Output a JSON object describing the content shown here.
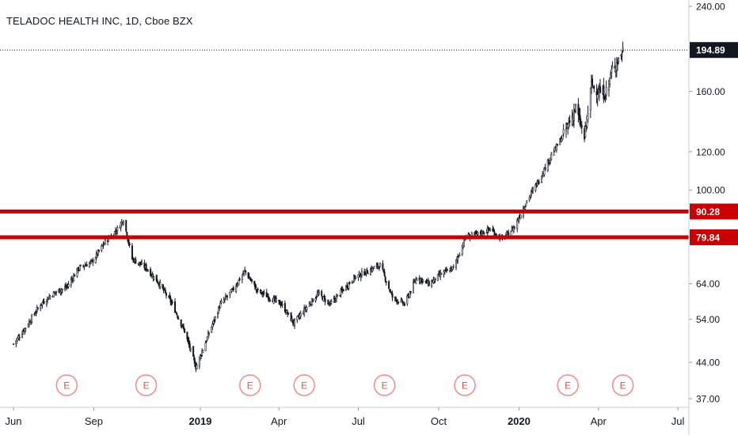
{
  "chart_data": {
    "type": "candlestick",
    "title": "TELADOC HEALTH INC, 1D, Cboe BZX",
    "y_scale": "log",
    "ylim": [
      35,
      250
    ],
    "y_ticks": [
      {
        "value": 240,
        "label": "240.00"
      },
      {
        "value": 160,
        "label": "160.00"
      },
      {
        "value": 120,
        "label": "120.00"
      },
      {
        "value": 100,
        "label": "100.00"
      },
      {
        "value": 64,
        "label": "64.00"
      },
      {
        "value": 54,
        "label": "54.00"
      },
      {
        "value": 44,
        "label": "44.00"
      },
      {
        "value": 37,
        "label": "37.00"
      }
    ],
    "xlim": [
      "2018-06-01",
      "2020-07-10"
    ],
    "x_ticks": [
      {
        "date": "2018-06-01",
        "label": "Jun",
        "bold": false
      },
      {
        "date": "2018-09-01",
        "label": "Sep",
        "bold": false
      },
      {
        "date": "2019-01-01",
        "label": "2019",
        "bold": true
      },
      {
        "date": "2019-04-01",
        "label": "Apr",
        "bold": false
      },
      {
        "date": "2019-07-01",
        "label": "Jul",
        "bold": false
      },
      {
        "date": "2019-10-01",
        "label": "Oct",
        "bold": false
      },
      {
        "date": "2020-01-01",
        "label": "2020",
        "bold": true
      },
      {
        "date": "2020-04-01",
        "label": "Apr",
        "bold": false
      },
      {
        "date": "2020-07-01",
        "label": "Jul",
        "bold": false
      }
    ],
    "last_price": {
      "value": 194.89,
      "label": "194.89"
    },
    "horizontal_lines": [
      {
        "value": 90.28,
        "label": "90.28",
        "color": "#cc0000"
      },
      {
        "value": 79.84,
        "label": "79.84",
        "color": "#cc0000"
      }
    ],
    "earnings_markers": [
      {
        "date": "2018-08-01",
        "label": "E"
      },
      {
        "date": "2018-10-31",
        "label": "E"
      },
      {
        "date": "2019-02-27",
        "label": "E"
      },
      {
        "date": "2019-04-30",
        "label": "E"
      },
      {
        "date": "2019-07-31",
        "label": "E"
      },
      {
        "date": "2019-10-31",
        "label": "E"
      },
      {
        "date": "2020-02-26",
        "label": "E"
      },
      {
        "date": "2020-04-29",
        "label": "E"
      }
    ],
    "series": [
      {
        "type": "daily-close",
        "points": [
          [
            "2018-06-01",
            48
          ],
          [
            "2018-06-15",
            52
          ],
          [
            "2018-07-02",
            58
          ],
          [
            "2018-07-16",
            61
          ],
          [
            "2018-08-01",
            63
          ],
          [
            "2018-08-15",
            69
          ],
          [
            "2018-08-30",
            71
          ],
          [
            "2018-09-14",
            78
          ],
          [
            "2018-09-28",
            83
          ],
          [
            "2018-10-05",
            87
          ],
          [
            "2018-10-15",
            72
          ],
          [
            "2018-10-31",
            69
          ],
          [
            "2018-11-15",
            64
          ],
          [
            "2018-11-30",
            58
          ],
          [
            "2018-12-14",
            51
          ],
          [
            "2018-12-27",
            43
          ],
          [
            "2019-01-10",
            50
          ],
          [
            "2019-01-24",
            58
          ],
          [
            "2019-02-07",
            62
          ],
          [
            "2019-02-21",
            68
          ],
          [
            "2019-03-07",
            62
          ],
          [
            "2019-03-21",
            60
          ],
          [
            "2019-04-04",
            58
          ],
          [
            "2019-04-18",
            53
          ],
          [
            "2019-05-02",
            57
          ],
          [
            "2019-05-16",
            61
          ],
          [
            "2019-05-30",
            58
          ],
          [
            "2019-06-13",
            62
          ],
          [
            "2019-06-27",
            66
          ],
          [
            "2019-07-12",
            68
          ],
          [
            "2019-07-26",
            70
          ],
          [
            "2019-08-09",
            60
          ],
          [
            "2019-08-23",
            58
          ],
          [
            "2019-09-06",
            66
          ],
          [
            "2019-09-20",
            64
          ],
          [
            "2019-10-04",
            67
          ],
          [
            "2019-10-18",
            69
          ],
          [
            "2019-11-01",
            80
          ],
          [
            "2019-11-15",
            81
          ],
          [
            "2019-11-29",
            83
          ],
          [
            "2019-12-13",
            79
          ],
          [
            "2019-12-27",
            84
          ],
          [
            "2020-01-10",
            95
          ],
          [
            "2020-01-24",
            105
          ],
          [
            "2020-02-07",
            118
          ],
          [
            "2020-02-21",
            130
          ],
          [
            "2020-03-06",
            148
          ],
          [
            "2020-03-16",
            128
          ],
          [
            "2020-03-24",
            165
          ],
          [
            "2020-04-01",
            160
          ],
          [
            "2020-04-09",
            158
          ],
          [
            "2020-04-17",
            178
          ],
          [
            "2020-04-24",
            186
          ],
          [
            "2020-04-29",
            194.89
          ]
        ]
      }
    ]
  }
}
